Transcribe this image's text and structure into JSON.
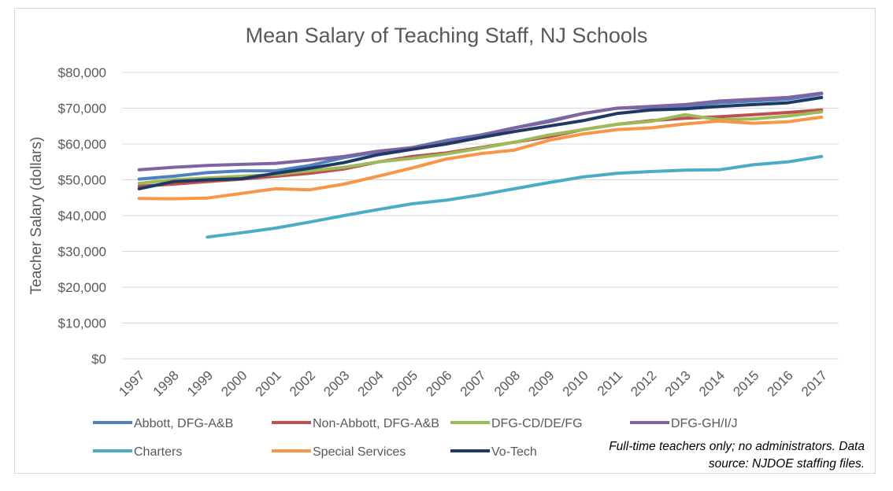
{
  "chart_data": {
    "type": "line",
    "title": "Mean Salary of Teaching Staff, NJ Schools",
    "xlabel": "",
    "ylabel": "Teacher Salary (dollars)",
    "ylim": [
      0,
      80000
    ],
    "yticks": [
      "$0",
      "$10,000",
      "$20,000",
      "$30,000",
      "$40,000",
      "$50,000",
      "$60,000",
      "$70,000",
      "$80,000"
    ],
    "ytick_values": [
      0,
      10000,
      20000,
      30000,
      40000,
      50000,
      60000,
      70000,
      80000
    ],
    "categories": [
      "1997",
      "1998",
      "1999",
      "2000",
      "2001",
      "2002",
      "2003",
      "2004",
      "2005",
      "2006",
      "2007",
      "2008",
      "2009",
      "2010",
      "2011",
      "2012",
      "2013",
      "2014",
      "2015",
      "2016",
      "2017"
    ],
    "grid": true,
    "legend_position": "bottom",
    "series": [
      {
        "name": "Abbott, DFG-A&B",
        "color": "#4f81bd",
        "values": [
          50200,
          51000,
          52000,
          52500,
          52500,
          54000,
          56200,
          57800,
          59000,
          61000,
          62500,
          64500,
          66500,
          68500,
          70000,
          70200,
          70500,
          71500,
          72000,
          72500,
          74000
        ]
      },
      {
        "name": "Non-Abbott, DFG-A&B",
        "color": "#c0504d",
        "values": [
          48200,
          48800,
          49500,
          50200,
          51000,
          51800,
          53000,
          55000,
          56500,
          57500,
          59000,
          60500,
          62000,
          64000,
          65500,
          66500,
          67200,
          67600,
          68200,
          68800,
          69500
        ]
      },
      {
        "name": "DFG-CD/DE/FG",
        "color": "#9bbb59",
        "values": [
          49000,
          50000,
          50500,
          51000,
          51500,
          52500,
          53500,
          55000,
          56000,
          57200,
          58800,
          60500,
          62500,
          64000,
          65500,
          66300,
          68200,
          66800,
          67000,
          67800,
          69000
        ]
      },
      {
        "name": "DFG-GH/I/J",
        "color": "#8064a2",
        "values": [
          52800,
          53500,
          54000,
          54300,
          54600,
          55500,
          56500,
          58000,
          59000,
          60500,
          62300,
          64500,
          66200,
          68500,
          70000,
          70500,
          71000,
          72000,
          72500,
          73000,
          74200
        ]
      },
      {
        "name": "Charters",
        "color": "#4bacc6",
        "values": [
          null,
          null,
          34000,
          35200,
          36500,
          38200,
          40000,
          41700,
          43300,
          44300,
          45800,
          47500,
          49200,
          50800,
          51800,
          52300,
          52700,
          52800,
          54200,
          55000,
          56500
        ]
      },
      {
        "name": "Special Services",
        "color": "#f79646",
        "values": [
          44800,
          44700,
          44900,
          46200,
          47500,
          47200,
          48800,
          51000,
          53300,
          55800,
          57300,
          58300,
          61000,
          62800,
          64000,
          64500,
          65600,
          66400,
          65800,
          66200,
          67500
        ]
      },
      {
        "name": "Vo-Tech",
        "color": "#1f3864",
        "values": [
          47500,
          49500,
          50000,
          50300,
          51800,
          53200,
          54800,
          57000,
          58500,
          60000,
          61800,
          63500,
          65000,
          66500,
          68500,
          69500,
          69800,
          70500,
          71000,
          71500,
          73000
        ]
      }
    ]
  },
  "footnote": {
    "line1": "Full-time teachers only; no administrators. Data",
    "line2": "source: NJDOE staffing files."
  }
}
